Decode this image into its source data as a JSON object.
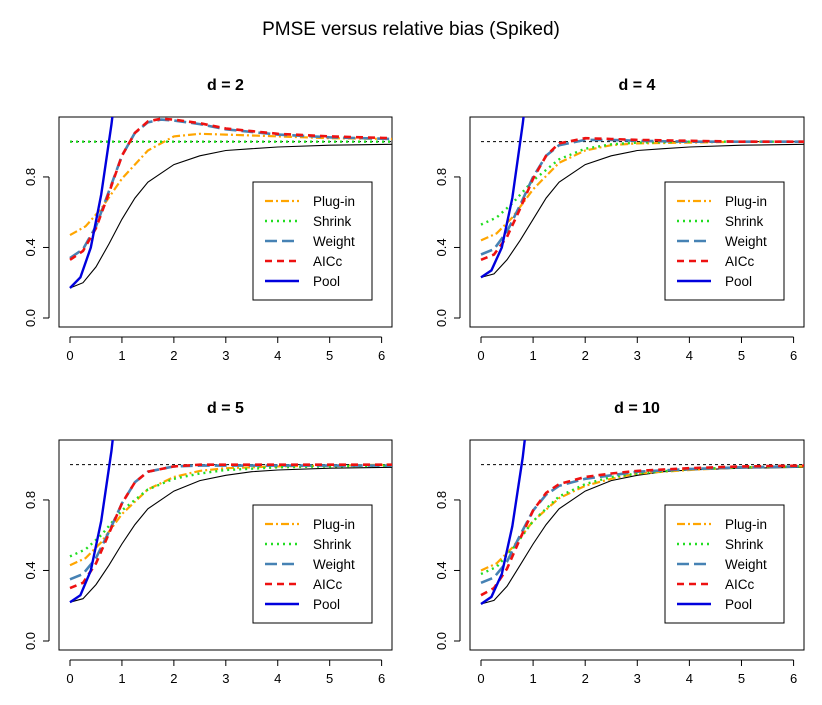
{
  "figure_title": "PMSE versus relative bias (Spiked)",
  "styles": {
    "Plug-in": {
      "color": "#FFA500",
      "dash": "8,3,2,3",
      "width": 2.2
    },
    "Shrink": {
      "color": "#22DD22",
      "dash": "2,4",
      "width": 2.4
    },
    "Weight": {
      "color": "#4682B4",
      "dash": "12,5",
      "width": 2.6
    },
    "AICc": {
      "color": "#EE1111",
      "dash": "7,5",
      "width": 2.6
    },
    "Pool": {
      "color": "#0000DD",
      "dash": "",
      "width": 2.4
    },
    "reference": {
      "color": "#000000"
    }
  },
  "chart_data": [
    {
      "type": "line",
      "title": "d = 2",
      "xlim": [
        0,
        6.2
      ],
      "ylim": [
        0,
        1.14
      ],
      "xticks": [
        "0",
        "1",
        "2",
        "3",
        "4",
        "5",
        "6"
      ],
      "yticks": [
        "0.0",
        "0.4",
        "0.8"
      ],
      "grid": false,
      "legend_position": "right-center",
      "hline": 1.0,
      "reference_curve": {
        "x": [
          0,
          0.25,
          0.5,
          0.75,
          1,
          1.25,
          1.5,
          2,
          2.5,
          3,
          3.5,
          4,
          5,
          6.2
        ],
        "y": [
          0.17,
          0.2,
          0.29,
          0.42,
          0.56,
          0.68,
          0.77,
          0.87,
          0.92,
          0.95,
          0.96,
          0.97,
          0.98,
          0.985
        ]
      },
      "series": [
        {
          "name": "Plug-in",
          "x": [
            0,
            0.3,
            0.6,
            1,
            1.5,
            2,
            2.5,
            3,
            4,
            5,
            6.2
          ],
          "y": [
            0.47,
            0.52,
            0.62,
            0.79,
            0.95,
            1.03,
            1.045,
            1.04,
            1.03,
            1.02,
            1.015
          ]
        },
        {
          "name": "Shrink",
          "x": [
            0,
            0.3,
            0.6,
            1,
            1.5,
            2,
            3,
            4,
            5,
            6.2
          ],
          "y": [
            1.0,
            1.0,
            1.0,
            1.0,
            1.0,
            1.0,
            1.0,
            1.0,
            1.0,
            1.0
          ]
        },
        {
          "name": "Weight",
          "x": [
            0,
            0.25,
            0.5,
            0.75,
            1,
            1.25,
            1.5,
            1.75,
            2,
            2.5,
            3,
            4,
            5,
            6.2
          ],
          "y": [
            0.34,
            0.39,
            0.52,
            0.72,
            0.92,
            1.05,
            1.11,
            1.125,
            1.12,
            1.1,
            1.07,
            1.04,
            1.025,
            1.015
          ]
        },
        {
          "name": "AICc",
          "x": [
            0,
            0.25,
            0.5,
            0.75,
            1,
            1.25,
            1.5,
            1.75,
            2,
            2.5,
            3,
            4,
            5,
            6.2
          ],
          "y": [
            0.33,
            0.38,
            0.51,
            0.71,
            0.92,
            1.05,
            1.115,
            1.13,
            1.125,
            1.105,
            1.075,
            1.045,
            1.03,
            1.02
          ]
        },
        {
          "name": "Pool",
          "x": [
            0,
            0.2,
            0.4,
            0.6,
            0.8,
            1.0
          ],
          "y": [
            0.17,
            0.23,
            0.4,
            0.7,
            1.1,
            1.6
          ]
        }
      ]
    },
    {
      "type": "line",
      "title": "d = 4",
      "xlim": [
        0,
        6.2
      ],
      "ylim": [
        0,
        1.14
      ],
      "xticks": [
        "0",
        "1",
        "2",
        "3",
        "4",
        "5",
        "6"
      ],
      "yticks": [
        "0.0",
        "0.4",
        "0.8"
      ],
      "grid": false,
      "legend_position": "right-center",
      "hline": 1.0,
      "reference_curve": {
        "x": [
          0,
          0.25,
          0.5,
          0.75,
          1,
          1.25,
          1.5,
          2,
          2.5,
          3,
          3.5,
          4,
          5,
          6.2
        ],
        "y": [
          0.23,
          0.25,
          0.33,
          0.44,
          0.56,
          0.68,
          0.77,
          0.87,
          0.92,
          0.95,
          0.96,
          0.97,
          0.98,
          0.985
        ]
      },
      "series": [
        {
          "name": "Plug-in",
          "x": [
            0,
            0.3,
            0.6,
            1,
            1.5,
            2,
            2.5,
            3,
            4,
            5,
            6.2
          ],
          "y": [
            0.44,
            0.48,
            0.57,
            0.73,
            0.88,
            0.95,
            0.98,
            0.99,
            0.995,
            1.0,
            1.0
          ]
        },
        {
          "name": "Shrink",
          "x": [
            0,
            0.3,
            0.6,
            1,
            1.5,
            2,
            2.5,
            3,
            4,
            5,
            6.2
          ],
          "y": [
            0.53,
            0.57,
            0.65,
            0.78,
            0.9,
            0.96,
            0.985,
            0.995,
            1.0,
            1.0,
            1.0
          ]
        },
        {
          "name": "Weight",
          "x": [
            0,
            0.25,
            0.5,
            0.75,
            1,
            1.25,
            1.5,
            2,
            2.5,
            3,
            4,
            5,
            6.2
          ],
          "y": [
            0.36,
            0.39,
            0.49,
            0.64,
            0.8,
            0.92,
            0.98,
            1.01,
            1.01,
            1.005,
            1.0,
            1.0,
            1.0
          ]
        },
        {
          "name": "AICc",
          "x": [
            0,
            0.25,
            0.5,
            0.75,
            1,
            1.25,
            1.5,
            2,
            2.5,
            3,
            4,
            5,
            6.2
          ],
          "y": [
            0.33,
            0.36,
            0.46,
            0.62,
            0.79,
            0.92,
            0.99,
            1.02,
            1.015,
            1.01,
            1.005,
            1.0,
            1.0
          ]
        },
        {
          "name": "Pool",
          "x": [
            0,
            0.2,
            0.4,
            0.6,
            0.8,
            1.0
          ],
          "y": [
            0.23,
            0.27,
            0.4,
            0.68,
            1.1,
            1.6
          ]
        }
      ]
    },
    {
      "type": "line",
      "title": "d = 5",
      "xlim": [
        0,
        6.2
      ],
      "ylim": [
        0,
        1.14
      ],
      "xticks": [
        "0",
        "1",
        "2",
        "3",
        "4",
        "5",
        "6"
      ],
      "yticks": [
        "0.0",
        "0.4",
        "0.8"
      ],
      "grid": false,
      "legend_position": "right-center",
      "hline": 1.0,
      "reference_curve": {
        "x": [
          0,
          0.25,
          0.5,
          0.75,
          1,
          1.25,
          1.5,
          2,
          2.5,
          3,
          3.5,
          4,
          5,
          6.2
        ],
        "y": [
          0.22,
          0.24,
          0.32,
          0.43,
          0.55,
          0.66,
          0.75,
          0.85,
          0.91,
          0.94,
          0.96,
          0.97,
          0.98,
          0.985
        ]
      },
      "series": [
        {
          "name": "Plug-in",
          "x": [
            0,
            0.3,
            0.6,
            1,
            1.5,
            2,
            2.5,
            3,
            4,
            5,
            6.2
          ],
          "y": [
            0.43,
            0.47,
            0.56,
            0.72,
            0.86,
            0.93,
            0.965,
            0.98,
            0.99,
            0.995,
            1.0
          ]
        },
        {
          "name": "Shrink",
          "x": [
            0,
            0.3,
            0.6,
            1,
            1.5,
            2,
            2.5,
            3,
            4,
            5,
            6.2
          ],
          "y": [
            0.48,
            0.52,
            0.6,
            0.74,
            0.86,
            0.92,
            0.95,
            0.97,
            0.985,
            0.99,
            0.995
          ]
        },
        {
          "name": "Weight",
          "x": [
            0,
            0.25,
            0.5,
            0.75,
            1,
            1.25,
            1.5,
            2,
            2.5,
            3,
            4,
            5,
            6.2
          ],
          "y": [
            0.35,
            0.38,
            0.47,
            0.62,
            0.78,
            0.9,
            0.96,
            0.99,
            0.995,
            0.995,
            0.995,
            0.995,
            0.995
          ]
        },
        {
          "name": "AICc",
          "x": [
            0,
            0.25,
            0.5,
            0.75,
            1,
            1.25,
            1.5,
            2,
            2.5,
            3,
            4,
            5,
            6.2
          ],
          "y": [
            0.3,
            0.33,
            0.44,
            0.61,
            0.78,
            0.9,
            0.96,
            0.99,
            1.0,
            1.0,
            1.0,
            1.0,
            1.0
          ]
        },
        {
          "name": "Pool",
          "x": [
            0,
            0.2,
            0.4,
            0.6,
            0.8,
            0.95
          ],
          "y": [
            0.22,
            0.26,
            0.4,
            0.68,
            1.08,
            1.48
          ]
        }
      ]
    },
    {
      "type": "line",
      "title": "d = 10",
      "xlim": [
        0,
        6.2
      ],
      "ylim": [
        0,
        1.14
      ],
      "xticks": [
        "0",
        "1",
        "2",
        "3",
        "4",
        "5",
        "6"
      ],
      "yticks": [
        "0.0",
        "0.4",
        "0.8"
      ],
      "grid": false,
      "legend_position": "right-center",
      "hline": 1.0,
      "reference_curve": {
        "x": [
          0,
          0.25,
          0.5,
          0.75,
          1,
          1.25,
          1.5,
          2,
          2.5,
          3,
          3.5,
          4,
          5,
          6.2
        ],
        "y": [
          0.21,
          0.23,
          0.31,
          0.43,
          0.55,
          0.66,
          0.75,
          0.85,
          0.91,
          0.94,
          0.96,
          0.97,
          0.98,
          0.985
        ]
      },
      "series": [
        {
          "name": "Plug-in",
          "x": [
            0,
            0.3,
            0.6,
            1,
            1.5,
            2,
            2.5,
            3,
            4,
            5,
            6.2
          ],
          "y": [
            0.4,
            0.44,
            0.53,
            0.68,
            0.81,
            0.88,
            0.92,
            0.95,
            0.97,
            0.985,
            0.99
          ]
        },
        {
          "name": "Shrink",
          "x": [
            0,
            0.3,
            0.6,
            1,
            1.5,
            2,
            2.5,
            3,
            4,
            5,
            6.2
          ],
          "y": [
            0.38,
            0.42,
            0.52,
            0.68,
            0.82,
            0.89,
            0.93,
            0.95,
            0.975,
            0.985,
            0.99
          ]
        },
        {
          "name": "Weight",
          "x": [
            0,
            0.25,
            0.5,
            0.75,
            1,
            1.25,
            1.5,
            2,
            2.5,
            3,
            4,
            5,
            6.2
          ],
          "y": [
            0.33,
            0.36,
            0.45,
            0.6,
            0.74,
            0.83,
            0.88,
            0.92,
            0.94,
            0.96,
            0.975,
            0.985,
            0.99
          ]
        },
        {
          "name": "AICc",
          "x": [
            0,
            0.25,
            0.5,
            0.75,
            1,
            1.25,
            1.5,
            2,
            2.5,
            3,
            4,
            5,
            6.2
          ],
          "y": [
            0.26,
            0.3,
            0.41,
            0.58,
            0.74,
            0.84,
            0.89,
            0.93,
            0.95,
            0.965,
            0.98,
            0.99,
            0.995
          ]
        },
        {
          "name": "Pool",
          "x": [
            0,
            0.2,
            0.4,
            0.6,
            0.8,
            0.95
          ],
          "y": [
            0.21,
            0.25,
            0.38,
            0.65,
            1.04,
            1.42
          ]
        }
      ]
    }
  ],
  "legend_labels": [
    "Plug-in",
    "Shrink",
    "Weight",
    "AICc",
    "Pool"
  ]
}
